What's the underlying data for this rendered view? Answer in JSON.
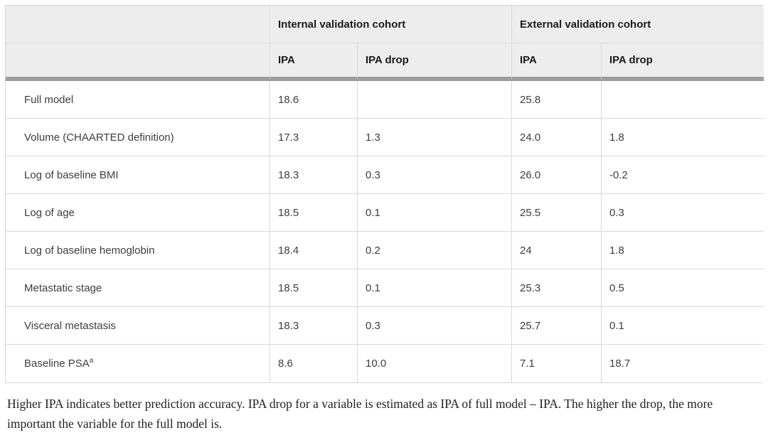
{
  "table": {
    "col_groups": [
      {
        "label": ""
      },
      {
        "label": "Internal validation cohort"
      },
      {
        "label": "External validation cohort"
      }
    ],
    "sub_headers": [
      "IPA",
      "IPA drop",
      "IPA",
      "IPA drop"
    ],
    "rows": [
      {
        "label": "Full model",
        "sup": "",
        "values": [
          "18.6",
          "",
          "25.8",
          ""
        ]
      },
      {
        "label": "Volume (CHAARTED definition)",
        "sup": "",
        "values": [
          "17.3",
          "1.3",
          "24.0",
          "1.8"
        ]
      },
      {
        "label": "Log of baseline BMI",
        "sup": "",
        "values": [
          "18.3",
          "0.3",
          "26.0",
          "-0.2"
        ]
      },
      {
        "label": "Log of age",
        "sup": "",
        "values": [
          "18.5",
          "0.1",
          "25.5",
          "0.3"
        ]
      },
      {
        "label": "Log of baseline hemoglobin",
        "sup": "",
        "values": [
          "18.4",
          "0.2",
          "24",
          "1.8"
        ]
      },
      {
        "label": "Metastatic stage",
        "sup": "",
        "values": [
          "18.5",
          "0.1",
          "25.3",
          "0.5"
        ]
      },
      {
        "label": "Visceral metastasis",
        "sup": "",
        "values": [
          "18.3",
          "0.3",
          "25.7",
          "0.1"
        ]
      },
      {
        "label": "Baseline PSA",
        "sup": "a",
        "values": [
          "8.6",
          "10.0",
          "7.1",
          "18.7"
        ]
      }
    ],
    "footnote": "Higher IPA indicates better prediction accuracy. IPA drop for a variable is estimated as IPA of full model – IPA. The higher the drop, the more important the variable for the full model is."
  },
  "colors": {
    "header_background": "#ededed",
    "grid_border": "#d9d9d9",
    "outer_border": "#d4d4d4",
    "thick_header_rule": "#9d9d9d",
    "header_text": "#1b1b1b",
    "cell_text": "#3d3d3d",
    "footnote_text": "#212121"
  }
}
